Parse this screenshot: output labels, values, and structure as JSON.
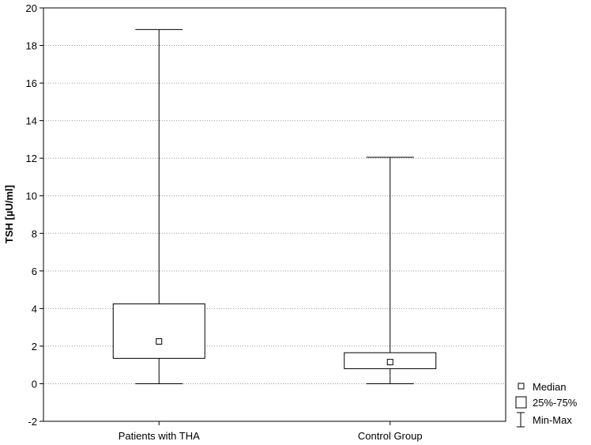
{
  "chart_data": {
    "type": "boxplot",
    "ylabel": "TSH [µU/ml]",
    "ylim": [
      -2,
      20
    ],
    "y_ticks": [
      -2,
      0,
      2,
      4,
      6,
      8,
      10,
      12,
      14,
      16,
      18,
      20
    ],
    "y_tick_labels": [
      "-2",
      "0",
      "2",
      "4",
      "6",
      "8",
      "10",
      "12",
      "14",
      "16",
      "18",
      "20"
    ],
    "grid": "horizontal dotted",
    "legend_placement": "bottom-right outside",
    "categories": [
      "Patients with THA",
      "Control Group"
    ],
    "boxes": [
      {
        "category": "Patients with THA",
        "min": 0.0,
        "q1": 1.35,
        "median": 2.25,
        "q3": 4.25,
        "max": 18.85
      },
      {
        "category": "Control Group",
        "min": 0.0,
        "q1": 0.8,
        "median": 1.15,
        "q3": 1.65,
        "max": 12.05
      }
    ],
    "legend": [
      "Median",
      "25%-75%",
      "Min-Max"
    ]
  }
}
